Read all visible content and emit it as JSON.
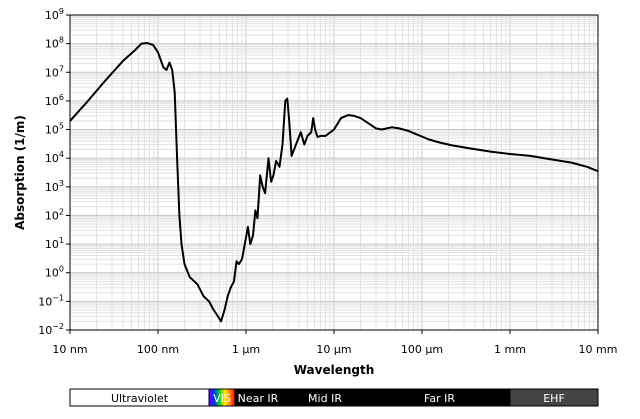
{
  "chart_data": {
    "type": "line",
    "title": "",
    "xlabel": "Wavelength",
    "ylabel": "Absorption (1/m)",
    "x_scale": "log",
    "y_scale": "log",
    "xlim": [
      1e-08,
      0.01
    ],
    "ylim": [
      0.01,
      1000000000.0
    ],
    "grid": true,
    "x_ticks": [
      {
        "value": 1e-08,
        "label": "10 nm"
      },
      {
        "value": 1e-07,
        "label": "100 nm"
      },
      {
        "value": 1e-06,
        "label": "1 μm"
      },
      {
        "value": 1e-05,
        "label": "10 μm"
      },
      {
        "value": 0.0001,
        "label": "100 μm"
      },
      {
        "value": 0.001,
        "label": "1 mm"
      },
      {
        "value": 0.01,
        "label": "10 mm"
      }
    ],
    "y_ticks": [
      {
        "value": 0.01,
        "base": "10",
        "exp": "−2"
      },
      {
        "value": 0.1,
        "base": "10",
        "exp": "−1"
      },
      {
        "value": 1.0,
        "base": "10",
        "exp": "0"
      },
      {
        "value": 10.0,
        "base": "10",
        "exp": "1"
      },
      {
        "value": 100.0,
        "base": "10",
        "exp": "2"
      },
      {
        "value": 1000.0,
        "base": "10",
        "exp": "3"
      },
      {
        "value": 10000.0,
        "base": "10",
        "exp": "4"
      },
      {
        "value": 100000.0,
        "base": "10",
        "exp": "5"
      },
      {
        "value": 1000000.0,
        "base": "10",
        "exp": "6"
      },
      {
        "value": 10000000.0,
        "base": "10",
        "exp": "7"
      },
      {
        "value": 100000000.0,
        "base": "10",
        "exp": "8"
      },
      {
        "value": 1000000000.0,
        "base": "10",
        "exp": "9"
      }
    ],
    "series": [
      {
        "color": "#000000",
        "x": [
          1e-08,
          1.6e-08,
          2.5e-08,
          4e-08,
          5.5e-08,
          6.5e-08,
          7.5e-08,
          8.8e-08,
          1e-07,
          1.15e-07,
          1.25e-07,
          1.35e-07,
          1.45e-07,
          1.55e-07,
          1.65e-07,
          1.75e-07,
          1.85e-07,
          2e-07,
          2.3e-07,
          2.8e-07,
          3.3e-07,
          3.8e-07,
          4.3e-07,
          4.8e-07,
          5.2e-07,
          5.7e-07,
          6.2e-07,
          6.7e-07,
          7.3e-07,
          7.8e-07,
          8.3e-07,
          9e-07,
          9.7e-07,
          1.05e-06,
          1.12e-06,
          1.2e-06,
          1.28e-06,
          1.35e-06,
          1.45e-06,
          1.55e-06,
          1.65e-06,
          1.8e-06,
          1.93e-06,
          2.05e-06,
          2.2e-06,
          2.4e-06,
          2.6e-06,
          2.8e-06,
          2.95e-06,
          3.1e-06,
          3.3e-06,
          3.7e-06,
          4.2e-06,
          4.6e-06,
          5e-06,
          5.5e-06,
          5.8e-06,
          6.1e-06,
          6.5e-06,
          7e-06,
          8e-06,
          1e-05,
          1.2e-05,
          1.45e-05,
          1.7e-05,
          2e-05,
          2.5e-05,
          3e-05,
          3.5e-05,
          4.5e-05,
          5.5e-05,
          7e-05,
          9e-05,
          0.00012,
          0.00016,
          0.00022,
          0.00035,
          0.0006,
          0.001,
          0.0017,
          0.003,
          0.005,
          0.0075,
          0.01
        ],
        "y": [
          200000.0,
          1000000.0,
          5000000.0,
          25000000.0,
          60000000.0,
          100000000.0,
          105000000.0,
          90000000.0,
          50000000.0,
          15000000.0,
          12000000.0,
          22000000.0,
          12000000.0,
          2000000.0,
          10000.0,
          100.0,
          10.0,
          2.0,
          0.7,
          0.4,
          0.15,
          0.1,
          0.05,
          0.03,
          0.02,
          0.05,
          0.15,
          0.3,
          0.5,
          2.5,
          2.0,
          3.0,
          10.0,
          40.0,
          10.0,
          20.0,
          150.0,
          80.0,
          2500.0,
          1000.0,
          600.0,
          10000.0,
          1500.0,
          2500.0,
          8000.0,
          5000.0,
          30000.0,
          1000000.0,
          1200000.0,
          200000.0,
          12000.0,
          30000.0,
          80000.0,
          30000.0,
          60000.0,
          80000.0,
          250000.0,
          100000.0,
          55000.0,
          60000.0,
          60000.0,
          100000.0,
          250000.0,
          320000.0,
          300000.0,
          250000.0,
          160000.0,
          110000.0,
          100000.0,
          120000.0,
          110000.0,
          90000.0,
          65000.0,
          45000.0,
          35000.0,
          28000.0,
          22000.0,
          17000.0,
          14000.0,
          12000.0,
          9000.0,
          7000.0,
          5000.0,
          3500.0
        ]
      }
    ]
  },
  "spectrum_bands": [
    {
      "label": "Ultraviolet",
      "from": 1e-08,
      "to": 3.8e-07,
      "bg": "#ffffff",
      "fg": "#000000",
      "kind": "plain"
    },
    {
      "label": "VIS",
      "from": 3.8e-07,
      "to": 7.5e-07,
      "bg": "#ff00ff",
      "fg": "#ffffff",
      "kind": "rainbow"
    },
    {
      "label": "Near IR",
      "from": 7.5e-07,
      "to": 2.5e-06,
      "bg": "#000000",
      "fg": "#ffffff",
      "kind": "plain"
    },
    {
      "label": "Mid IR",
      "from": 2.5e-06,
      "to": 2.5e-05,
      "bg": "#000000",
      "fg": "#ffffff",
      "kind": "plain"
    },
    {
      "label": "Far IR",
      "from": 2.5e-05,
      "to": 0.001,
      "bg": "#000000",
      "fg": "#ffffff",
      "kind": "plain"
    },
    {
      "label": "EHF",
      "from": 0.001,
      "to": 0.01,
      "bg": "#444444",
      "fg": "#ffffff",
      "kind": "plain"
    }
  ]
}
